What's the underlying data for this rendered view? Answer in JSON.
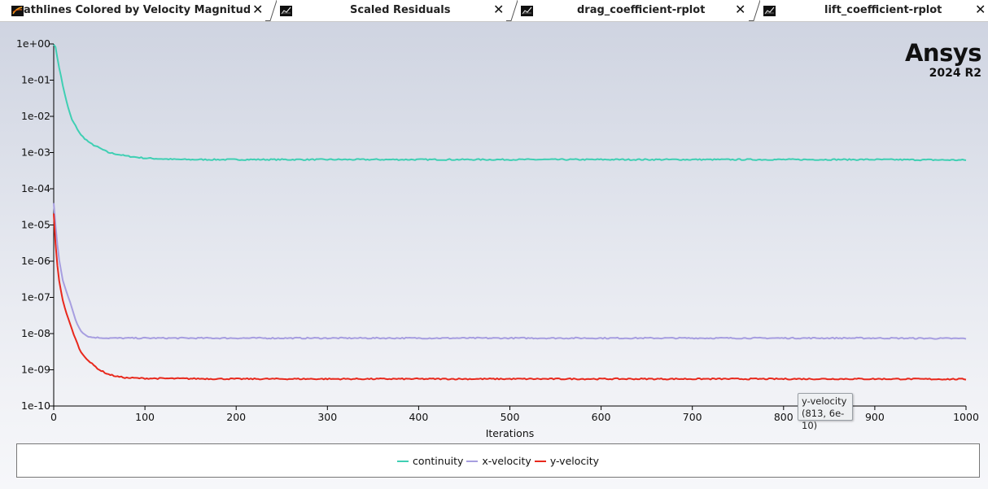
{
  "tabs": [
    {
      "label": "athlines Colored by Velocity Magnitude [m/",
      "active": false
    },
    {
      "label": "Scaled Residuals",
      "active": true
    },
    {
      "label": "drag_coefficient-rplot",
      "active": false
    },
    {
      "label": "lift_coefficient-rplot",
      "active": false
    }
  ],
  "icons": {
    "tab": "plot-window-icon",
    "close": "close-icon"
  },
  "close_glyph": "✕",
  "brand": {
    "name": "Ansys",
    "version": "2024 R2"
  },
  "chart_data": {
    "type": "line",
    "xlabel": "Iterations",
    "ylabel": "",
    "xlim": [
      0,
      1000
    ],
    "ylim": [
      1e-10,
      1
    ],
    "yscale": "log",
    "x_ticks": [
      0,
      100,
      200,
      300,
      400,
      500,
      600,
      700,
      800,
      900,
      1000
    ],
    "x_tick_labels": [
      "0",
      "100",
      "200",
      "300",
      "400",
      "500",
      "600",
      "700",
      "800",
      "900",
      "1000"
    ],
    "y_tick_labels": [
      "1e+00",
      "1e-01",
      "1e-02",
      "1e-03",
      "1e-04",
      "1e-05",
      "1e-06",
      "1e-07",
      "1e-08",
      "1e-09",
      "1e-10"
    ],
    "grid": false,
    "legend_position": "bottom",
    "series": [
      {
        "name": "continuity",
        "color": "#3fcfb3",
        "x": [
          0,
          2,
          5,
          10,
          15,
          20,
          30,
          40,
          60,
          80,
          100,
          130,
          150,
          200,
          300,
          400,
          500,
          600,
          700,
          800,
          900,
          1000
        ],
        "y": [
          1,
          0.8,
          0.3,
          0.07,
          0.02,
          0.008,
          0.003,
          0.0018,
          0.001,
          0.0008,
          0.0007,
          0.00065,
          0.00064,
          0.00064,
          0.00064,
          0.00064,
          0.00064,
          0.00064,
          0.00064,
          0.00064,
          0.00064,
          0.00062
        ]
      },
      {
        "name": "x-velocity",
        "color": "#a79ee0",
        "x": [
          0,
          2,
          5,
          10,
          15,
          20,
          25,
          30,
          35,
          40,
          50,
          60,
          100,
          200,
          300,
          400,
          500,
          600,
          700,
          800,
          900,
          1000
        ],
        "y": [
          4e-05,
          1e-05,
          1.5e-06,
          3e-07,
          1.2e-07,
          5e-08,
          2e-08,
          1.2e-08,
          9e-09,
          8e-09,
          7.7e-09,
          7.5e-09,
          7.5e-09,
          7.5e-09,
          7.5e-09,
          7.5e-09,
          7.5e-09,
          7.5e-09,
          7.5e-09,
          7.5e-09,
          7.5e-09,
          7.3e-09
        ]
      },
      {
        "name": "y-velocity",
        "color": "#e8281c",
        "x": [
          0,
          2,
          5,
          10,
          15,
          20,
          25,
          30,
          40,
          50,
          60,
          70,
          80,
          100,
          200,
          300,
          400,
          500,
          600,
          700,
          800,
          900,
          1000
        ],
        "y": [
          2e-05,
          3e-06,
          4e-07,
          8e-08,
          3e-08,
          1.3e-08,
          6e-09,
          3e-09,
          1.6e-09,
          1e-09,
          7.5e-10,
          6.5e-10,
          6e-10,
          5.8e-10,
          5.6e-10,
          5.6e-10,
          5.6e-10,
          5.6e-10,
          5.6e-10,
          5.6e-10,
          5.6e-10,
          5.6e-10,
          5.5e-10
        ]
      }
    ]
  },
  "tooltip": {
    "series": "y-velocity",
    "value": "(813, 6e-10)"
  }
}
